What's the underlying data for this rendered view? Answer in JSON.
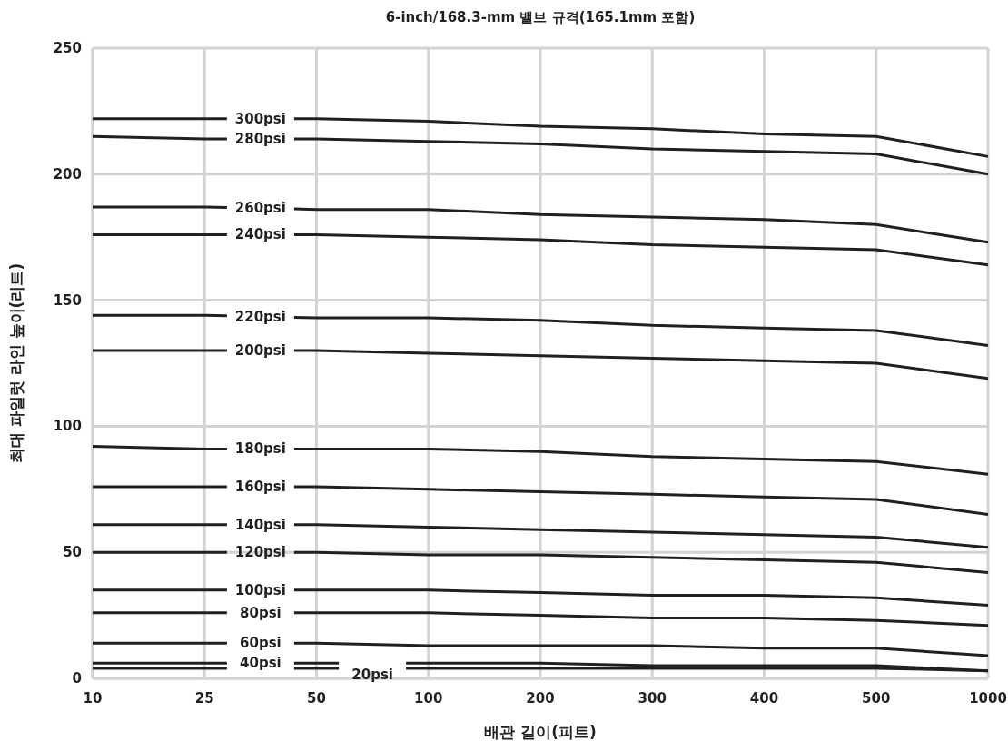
{
  "chart_data": {
    "type": "line",
    "title": "6-inch/168.3-mm 밸브 규격(165.1mm 포함)",
    "xlabel": "배관 길이(피트)",
    "ylabel": "최대 파일럿 라인 높이(리트)",
    "categories": [
      "10",
      "25",
      "50",
      "100",
      "200",
      "300",
      "400",
      "500",
      "1000"
    ],
    "ylim": [
      0,
      250
    ],
    "yticks": [
      0,
      50,
      100,
      150,
      200,
      250
    ],
    "grid": true,
    "series": [
      {
        "name": "300psi",
        "color": "#231f20",
        "values": [
          222,
          222,
          222,
          221,
          219,
          218,
          216,
          215,
          207
        ]
      },
      {
        "name": "280psi",
        "color": "#231f20",
        "values": [
          215,
          214,
          214,
          213,
          212,
          210,
          209,
          208,
          200
        ]
      },
      {
        "name": "260psi",
        "color": "#231f20",
        "values": [
          187,
          187,
          186,
          186,
          184,
          183,
          182,
          180,
          173
        ]
      },
      {
        "name": "240psi",
        "color": "#231f20",
        "values": [
          176,
          176,
          176,
          175,
          174,
          172,
          171,
          170,
          164
        ]
      },
      {
        "name": "220psi",
        "color": "#231f20",
        "values": [
          144,
          144,
          143,
          143,
          142,
          140,
          139,
          138,
          132
        ]
      },
      {
        "name": "200psi",
        "color": "#231f20",
        "values": [
          130,
          130,
          130,
          129,
          128,
          127,
          126,
          125,
          119
        ]
      },
      {
        "name": "180psi",
        "color": "#231f20",
        "values": [
          92,
          91,
          91,
          91,
          90,
          88,
          87,
          86,
          81
        ]
      },
      {
        "name": "160psi",
        "color": "#231f20",
        "values": [
          76,
          76,
          76,
          75,
          74,
          73,
          72,
          71,
          65
        ]
      },
      {
        "name": "140psi",
        "color": "#231f20",
        "values": [
          61,
          61,
          61,
          60,
          59,
          58,
          57,
          56,
          52
        ]
      },
      {
        "name": "120psi",
        "color": "#231f20",
        "values": [
          50,
          50,
          50,
          49,
          49,
          48,
          47,
          46,
          42
        ]
      },
      {
        "name": "100psi",
        "color": "#231f20",
        "values": [
          35,
          35,
          35,
          35,
          34,
          33,
          33,
          32,
          29
        ]
      },
      {
        "name": "80psi",
        "color": "#231f20",
        "values": [
          26,
          26,
          26,
          26,
          25,
          24,
          24,
          23,
          21
        ]
      },
      {
        "name": "60psi",
        "color": "#231f20",
        "values": [
          14,
          14,
          14,
          13,
          13,
          13,
          12,
          12,
          9
        ]
      },
      {
        "name": "40psi",
        "color": "#231f20",
        "values": [
          6,
          6,
          6,
          6,
          6,
          5,
          5,
          5,
          3
        ]
      },
      {
        "name": "20psi",
        "color": "#231f20",
        "values": [
          4,
          4,
          4,
          4,
          4,
          4,
          4,
          4,
          3
        ]
      }
    ]
  }
}
